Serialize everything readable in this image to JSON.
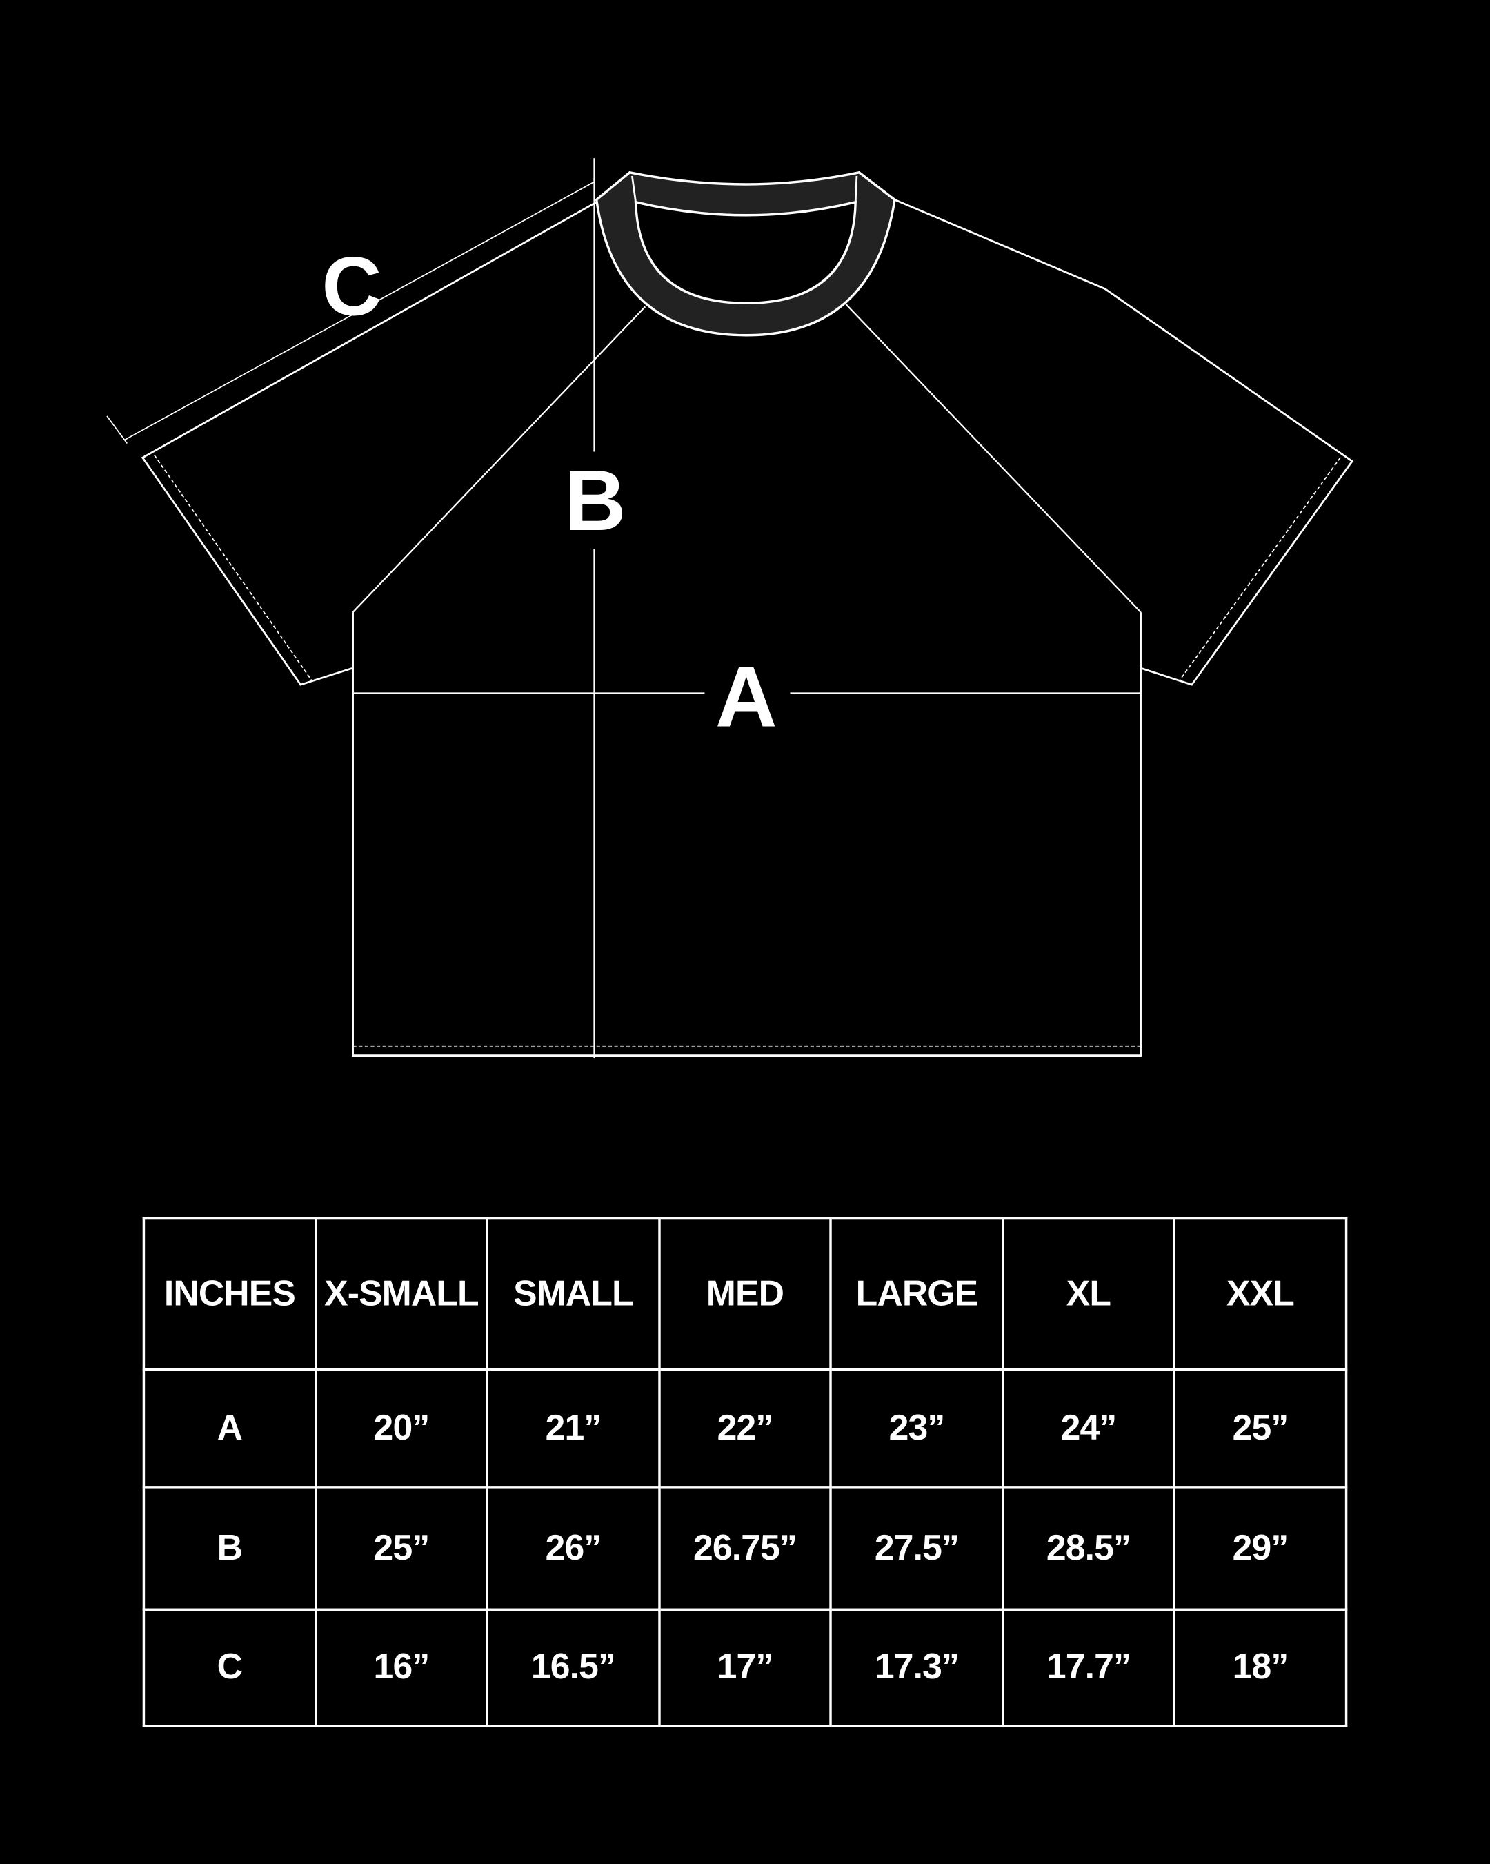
{
  "diagram": {
    "labels": {
      "a": "A",
      "b": "B",
      "c": "C"
    },
    "colors": {
      "background": "#000000",
      "line": "#ffffff",
      "collar": "#222222"
    }
  },
  "size_chart": {
    "header": [
      "INCHES",
      "X-SMALL",
      "SMALL",
      "MED",
      "LARGE",
      "XL",
      "XXL"
    ],
    "rows": [
      {
        "label": "A",
        "values": [
          "20”",
          "21”",
          "22”",
          "23”",
          "24”",
          "25”"
        ]
      },
      {
        "label": "B",
        "values": [
          "25”",
          "26”",
          "26.75”",
          "27.5”",
          "28.5”",
          "29”"
        ]
      },
      {
        "label": "C",
        "values": [
          "16”",
          "16.5”",
          "17”",
          "17.3”",
          "17.7”",
          "18”"
        ]
      }
    ]
  }
}
